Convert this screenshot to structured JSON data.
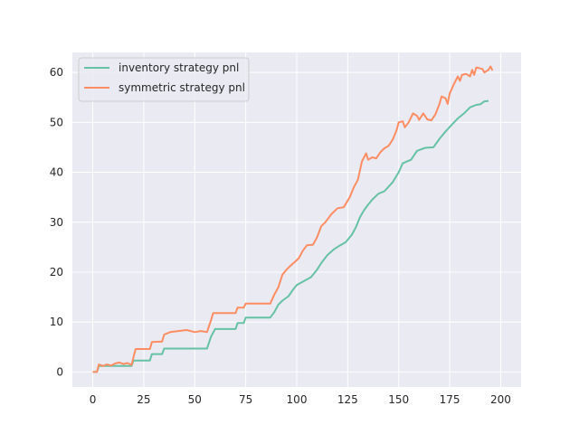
{
  "chart_data": {
    "type": "line",
    "title": "",
    "xlabel": "",
    "ylabel": "",
    "xlim": [
      -10,
      210
    ],
    "ylim": [
      -3,
      64
    ],
    "xticks": [
      0,
      25,
      50,
      75,
      100,
      125,
      150,
      175,
      200
    ],
    "yticks": [
      0,
      10,
      20,
      30,
      40,
      50,
      60
    ],
    "xtick_labels": [
      "0",
      "25",
      "50",
      "75",
      "100",
      "125",
      "150",
      "175",
      "200"
    ],
    "ytick_labels": [
      "0",
      "10",
      "20",
      "30",
      "40",
      "50",
      "60"
    ],
    "grid": true,
    "legend_position": "upper-left",
    "background": "#eaeaf2",
    "series": [
      {
        "name": "inventory strategy pnl",
        "color": "#66c2a5",
        "points": [
          [
            0,
            0
          ],
          [
            2,
            0
          ],
          [
            3,
            1.2
          ],
          [
            19,
            1.2
          ],
          [
            20,
            2.3
          ],
          [
            28,
            2.3
          ],
          [
            29,
            3.6
          ],
          [
            34,
            3.6
          ],
          [
            35,
            4.7
          ],
          [
            56,
            4.7
          ],
          [
            58,
            7.1
          ],
          [
            60,
            8.6
          ],
          [
            70,
            8.6
          ],
          [
            71,
            9.8
          ],
          [
            74,
            9.8
          ],
          [
            75,
            10.9
          ],
          [
            87,
            10.9
          ],
          [
            89,
            12.0
          ],
          [
            91,
            13.5
          ],
          [
            93,
            14.3
          ],
          [
            96,
            15.2
          ],
          [
            98,
            16.4
          ],
          [
            100,
            17.4
          ],
          [
            103,
            18.1
          ],
          [
            107,
            19.0
          ],
          [
            110,
            20.5
          ],
          [
            112,
            21.8
          ],
          [
            115,
            23.4
          ],
          [
            118,
            24.5
          ],
          [
            121,
            25.3
          ],
          [
            124,
            26.0
          ],
          [
            127,
            27.5
          ],
          [
            129,
            29.0
          ],
          [
            131,
            31.0
          ],
          [
            133,
            32.4
          ],
          [
            135,
            33.5
          ],
          [
            137,
            34.5
          ],
          [
            140,
            35.7
          ],
          [
            143,
            36.2
          ],
          [
            147,
            38.0
          ],
          [
            150,
            40.0
          ],
          [
            152,
            41.8
          ],
          [
            156,
            42.5
          ],
          [
            159,
            44.3
          ],
          [
            163,
            44.9
          ],
          [
            167,
            45.0
          ],
          [
            170,
            46.7
          ],
          [
            173,
            48.2
          ],
          [
            176,
            49.5
          ],
          [
            179,
            50.8
          ],
          [
            182,
            51.8
          ],
          [
            185,
            53.0
          ],
          [
            188,
            53.5
          ],
          [
            190,
            53.6
          ],
          [
            192,
            54.2
          ],
          [
            194,
            54.3
          ]
        ]
      },
      {
        "name": "symmetric strategy pnl",
        "color": "#fc8d62",
        "points": [
          [
            0,
            0
          ],
          [
            2,
            0
          ],
          [
            3,
            1.5
          ],
          [
            5,
            1.2
          ],
          [
            7,
            1.5
          ],
          [
            9,
            1.3
          ],
          [
            11,
            1.7
          ],
          [
            13,
            1.9
          ],
          [
            15,
            1.6
          ],
          [
            17,
            1.8
          ],
          [
            19,
            1.4
          ],
          [
            20,
            3.0
          ],
          [
            21,
            4.6
          ],
          [
            28,
            4.6
          ],
          [
            29,
            6.0
          ],
          [
            34,
            6.1
          ],
          [
            35,
            7.5
          ],
          [
            38,
            8.0
          ],
          [
            42,
            8.2
          ],
          [
            46,
            8.4
          ],
          [
            50,
            8.0
          ],
          [
            53,
            8.2
          ],
          [
            56,
            8.0
          ],
          [
            58,
            10.4
          ],
          [
            59,
            11.8
          ],
          [
            70,
            11.8
          ],
          [
            71,
            12.9
          ],
          [
            74,
            12.9
          ],
          [
            75,
            13.7
          ],
          [
            87,
            13.7
          ],
          [
            89,
            15.5
          ],
          [
            91,
            17.0
          ],
          [
            93,
            19.5
          ],
          [
            95,
            20.5
          ],
          [
            97,
            21.3
          ],
          [
            99,
            22.0
          ],
          [
            101,
            22.8
          ],
          [
            103,
            24.3
          ],
          [
            105,
            25.4
          ],
          [
            108,
            25.5
          ],
          [
            110,
            27.0
          ],
          [
            112,
            29.2
          ],
          [
            114,
            30.0
          ],
          [
            117,
            31.6
          ],
          [
            120,
            32.8
          ],
          [
            123,
            33.0
          ],
          [
            126,
            35.0
          ],
          [
            128,
            37.0
          ],
          [
            130,
            38.5
          ],
          [
            132,
            42.2
          ],
          [
            134,
            43.8
          ],
          [
            135,
            42.5
          ],
          [
            137,
            43.0
          ],
          [
            139,
            42.8
          ],
          [
            141,
            44.0
          ],
          [
            143,
            44.8
          ],
          [
            145,
            45.3
          ],
          [
            147,
            46.5
          ],
          [
            149,
            48.5
          ],
          [
            150,
            50.0
          ],
          [
            152,
            50.2
          ],
          [
            153,
            49.0
          ],
          [
            155,
            50.1
          ],
          [
            157,
            51.8
          ],
          [
            159,
            51.3
          ],
          [
            160,
            50.5
          ],
          [
            162,
            51.8
          ],
          [
            164,
            50.6
          ],
          [
            166,
            50.4
          ],
          [
            168,
            51.6
          ],
          [
            170,
            53.7
          ],
          [
            171,
            55.2
          ],
          [
            173,
            54.8
          ],
          [
            174,
            53.7
          ],
          [
            175,
            55.8
          ],
          [
            177,
            57.6
          ],
          [
            179,
            59.2
          ],
          [
            180,
            58.3
          ],
          [
            181,
            59.5
          ],
          [
            183,
            59.7
          ],
          [
            185,
            59.2
          ],
          [
            186,
            60.5
          ],
          [
            187,
            59.5
          ],
          [
            188,
            61.0
          ],
          [
            190,
            60.8
          ],
          [
            191,
            60.7
          ],
          [
            192,
            60.0
          ],
          [
            194,
            60.5
          ],
          [
            195,
            61.2
          ],
          [
            196,
            60.4
          ]
        ]
      }
    ]
  }
}
